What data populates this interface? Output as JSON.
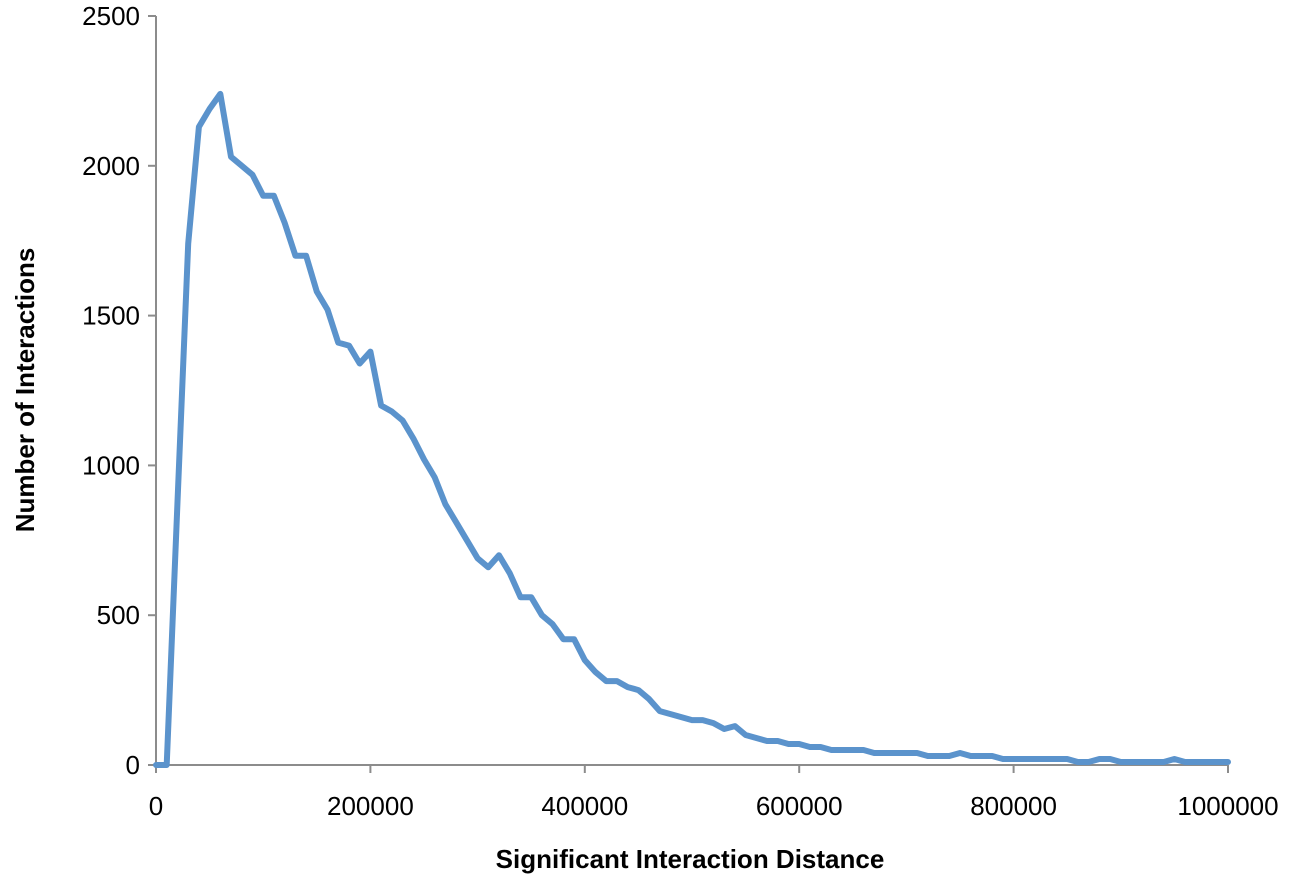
{
  "chart_data": {
    "type": "line",
    "title": "",
    "xlabel": "Significant Interaction Distance",
    "ylabel": "Number of Interactions",
    "xlim": [
      0,
      1000000
    ],
    "ylim": [
      0,
      2500
    ],
    "x_ticks": [
      0,
      200000,
      400000,
      600000,
      800000,
      1000000
    ],
    "x_tick_labels": [
      "0",
      "200000",
      "400000",
      "600000",
      "800000",
      "1000000"
    ],
    "y_ticks": [
      0,
      500,
      1000,
      1500,
      2000,
      2500
    ],
    "y_tick_labels": [
      "0",
      "500",
      "1000",
      "1500",
      "2000",
      "2500"
    ],
    "grid": false,
    "legend": "none",
    "series": [
      {
        "color": "#5b93cc",
        "x": [
          0,
          10000,
          20000,
          30000,
          40000,
          50000,
          60000,
          70000,
          80000,
          90000,
          100000,
          110000,
          120000,
          130000,
          140000,
          150000,
          160000,
          170000,
          180000,
          190000,
          200000,
          210000,
          220000,
          230000,
          240000,
          250000,
          260000,
          270000,
          280000,
          290000,
          300000,
          310000,
          320000,
          330000,
          340000,
          350000,
          360000,
          370000,
          380000,
          390000,
          400000,
          410000,
          420000,
          430000,
          440000,
          450000,
          460000,
          470000,
          480000,
          490000,
          500000,
          510000,
          520000,
          530000,
          540000,
          550000,
          560000,
          570000,
          580000,
          590000,
          600000,
          610000,
          620000,
          630000,
          640000,
          650000,
          660000,
          670000,
          680000,
          690000,
          700000,
          710000,
          720000,
          730000,
          740000,
          750000,
          760000,
          770000,
          780000,
          790000,
          800000,
          810000,
          820000,
          830000,
          840000,
          850000,
          860000,
          870000,
          880000,
          890000,
          900000,
          910000,
          920000,
          930000,
          940000,
          950000,
          960000,
          970000,
          980000,
          990000,
          1000000
        ],
        "y": [
          0,
          0,
          870,
          1740,
          2130,
          2190,
          2240,
          2030,
          2000,
          1970,
          1900,
          1900,
          1810,
          1700,
          1700,
          1580,
          1520,
          1410,
          1400,
          1340,
          1380,
          1200,
          1180,
          1150,
          1090,
          1020,
          960,
          870,
          810,
          750,
          690,
          660,
          700,
          640,
          560,
          560,
          500,
          470,
          420,
          420,
          350,
          310,
          280,
          280,
          260,
          250,
          220,
          180,
          170,
          160,
          150,
          150,
          140,
          120,
          130,
          100,
          90,
          80,
          80,
          70,
          70,
          60,
          60,
          50,
          50,
          50,
          50,
          40,
          40,
          40,
          40,
          40,
          30,
          30,
          30,
          40,
          30,
          30,
          30,
          20,
          20,
          20,
          20,
          20,
          20,
          20,
          10,
          10,
          20,
          20,
          10,
          10,
          10,
          10,
          10,
          20,
          10,
          10,
          10,
          10,
          10
        ]
      }
    ]
  }
}
